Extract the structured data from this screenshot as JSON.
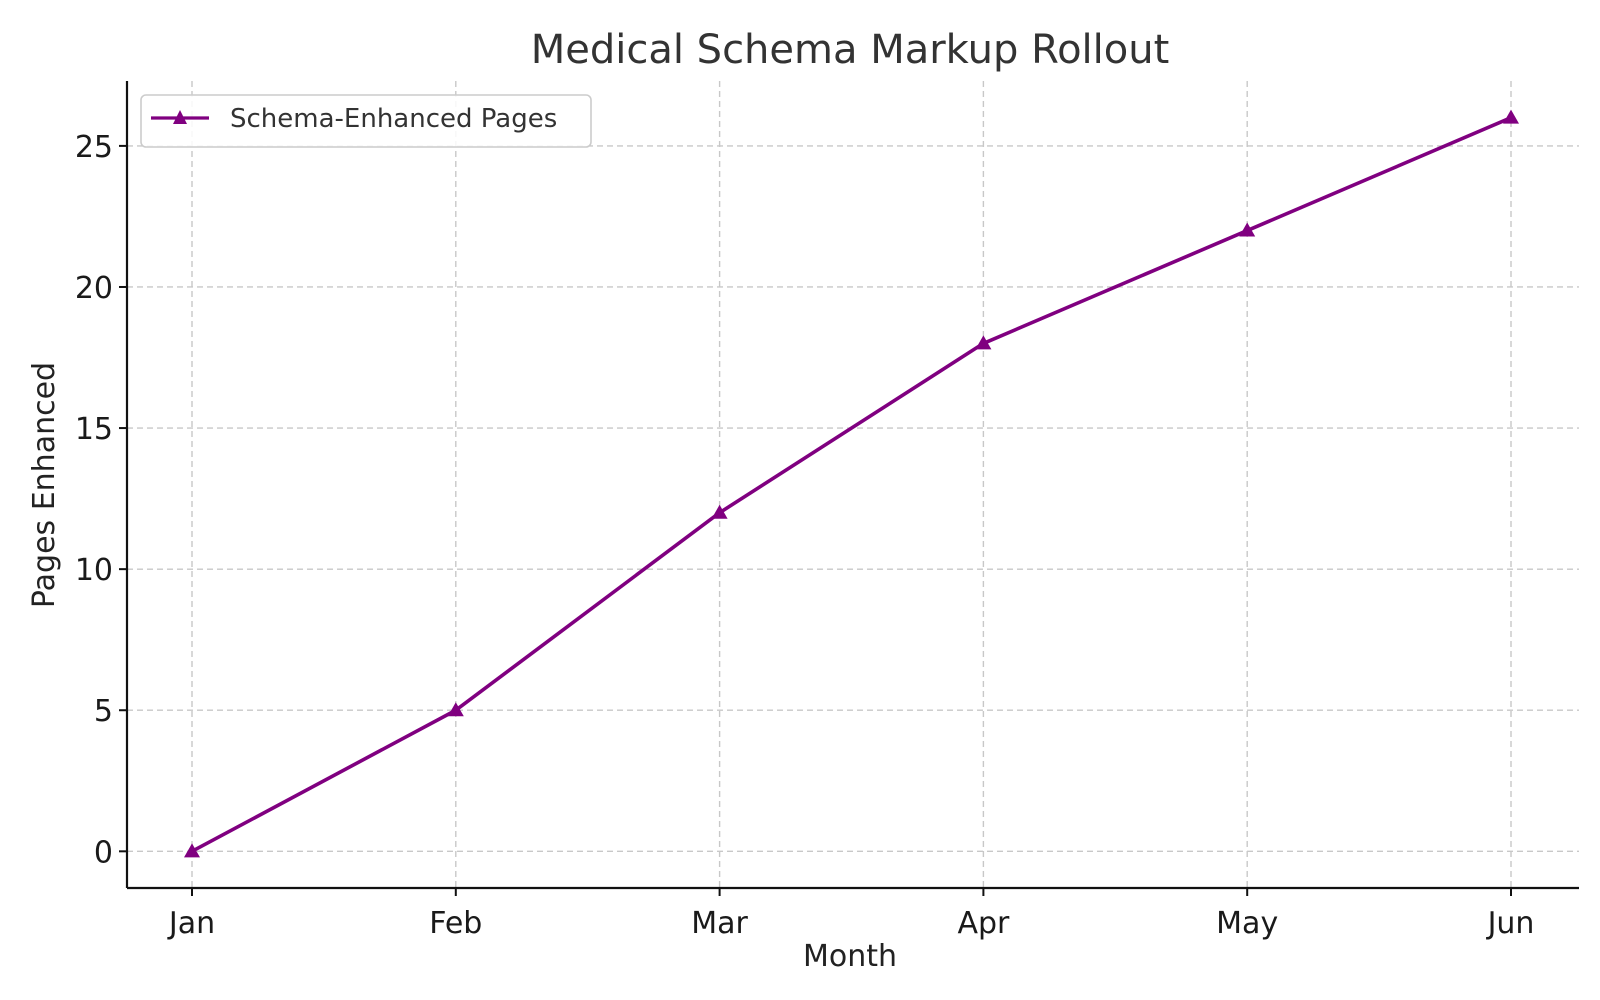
{
  "chart_data": {
    "type": "line",
    "title": "Medical Schema Markup Rollout",
    "xlabel": "Month",
    "ylabel": "Pages Enhanced",
    "categories": [
      "Jan",
      "Feb",
      "Mar",
      "Apr",
      "May",
      "Jun"
    ],
    "series": [
      {
        "name": "Schema-Enhanced Pages",
        "values": [
          0,
          5,
          12,
          18,
          22,
          26
        ],
        "color": "#800080",
        "marker": "triangle-up"
      }
    ],
    "ylim": [
      -1.3,
      27.3
    ],
    "yticks": [
      0,
      5,
      10,
      15,
      20,
      25
    ],
    "grid": true,
    "legend_position": "top-left"
  }
}
